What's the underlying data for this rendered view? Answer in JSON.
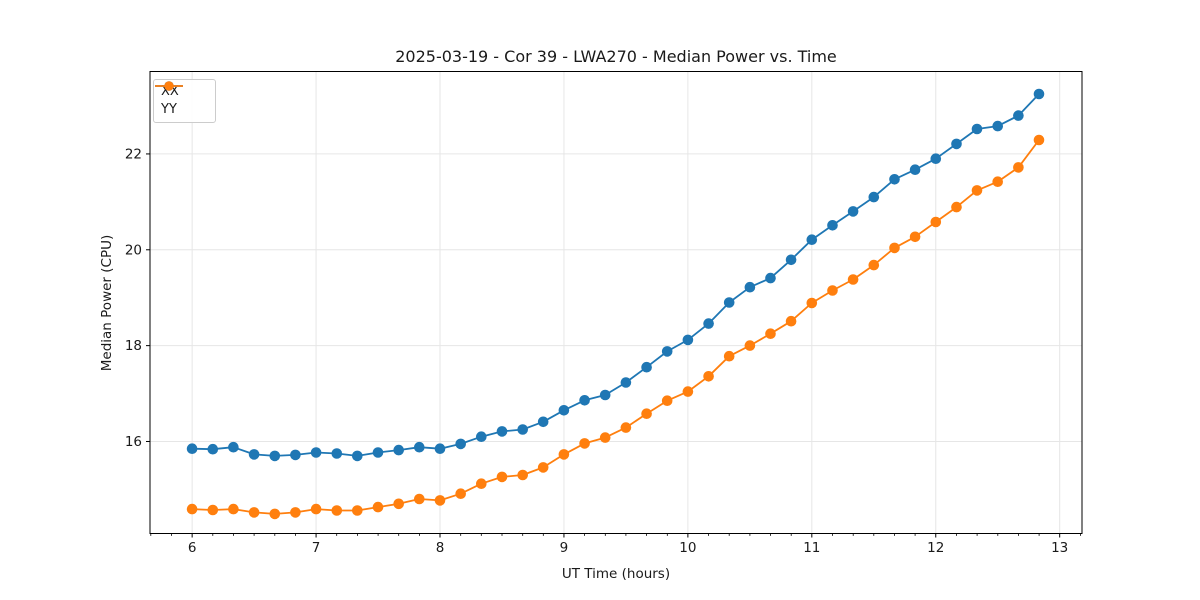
{
  "figure": {
    "style": {
      "grid_color": "#e6e6e6",
      "spine_color": "#000000",
      "text_color": "#1a1a1a",
      "background": "#ffffff"
    }
  },
  "chart_data": {
    "type": "line",
    "title": "2025-03-19 - Cor 39 - LWA270 - Median Power vs. Time",
    "xlabel": "UT Time (hours)",
    "ylabel": "Median Power (CPU)",
    "xlim": [
      5.66,
      13.18
    ],
    "ylim": [
      14.08,
      23.72
    ],
    "xticks": [
      6,
      7,
      8,
      9,
      10,
      11,
      12,
      13
    ],
    "yticks": [
      16,
      18,
      20,
      22
    ],
    "x_minor_tick_step": 0.16667,
    "grid": true,
    "legend_position": "upper left",
    "marker": "o",
    "x": [
      6.0,
      6.167,
      6.333,
      6.5,
      6.667,
      6.833,
      7.0,
      7.167,
      7.333,
      7.5,
      7.667,
      7.833,
      8.0,
      8.167,
      8.333,
      8.5,
      8.667,
      8.833,
      9.0,
      9.167,
      9.333,
      9.5,
      9.667,
      9.833,
      10.0,
      10.167,
      10.333,
      10.5,
      10.667,
      10.833,
      11.0,
      11.167,
      11.333,
      11.5,
      11.667,
      11.833,
      12.0,
      12.167,
      12.333,
      12.5,
      12.667,
      12.833
    ],
    "series": [
      {
        "name": "XX",
        "color": "#1f77b4",
        "values": [
          15.85,
          15.84,
          15.88,
          15.73,
          15.7,
          15.72,
          15.77,
          15.75,
          15.7,
          15.77,
          15.82,
          15.88,
          15.85,
          15.95,
          16.1,
          16.21,
          16.25,
          16.41,
          16.65,
          16.86,
          16.97,
          17.23,
          17.55,
          17.88,
          18.12,
          18.46,
          18.9,
          19.22,
          19.41,
          19.79,
          20.21,
          20.51,
          20.8,
          21.1,
          21.47,
          21.67,
          21.9,
          22.21,
          22.52,
          22.58,
          22.8,
          23.25
        ]
      },
      {
        "name": "YY",
        "color": "#ff7f0e",
        "values": [
          14.59,
          14.57,
          14.59,
          14.52,
          14.49,
          14.52,
          14.59,
          14.56,
          14.56,
          14.63,
          14.7,
          14.8,
          14.77,
          14.91,
          15.12,
          15.26,
          15.3,
          15.46,
          15.73,
          15.96,
          16.08,
          16.29,
          16.58,
          16.85,
          17.04,
          17.36,
          17.78,
          18.0,
          18.25,
          18.51,
          18.89,
          19.15,
          19.38,
          19.68,
          20.04,
          20.27,
          20.58,
          20.89,
          21.24,
          21.42,
          21.72,
          22.29
        ]
      }
    ]
  }
}
